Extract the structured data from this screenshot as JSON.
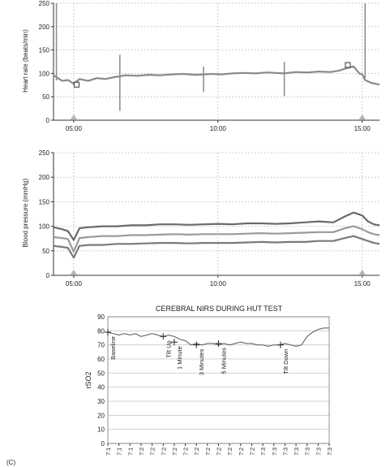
{
  "panel_label": "(C)",
  "chart_data": [
    {
      "type": "line",
      "title": "",
      "xlabel": "",
      "ylabel": "Heart rate (beats/min)",
      "ylim": [
        0,
        250
      ],
      "yticks": [
        "0",
        "50",
        "100",
        "150",
        "200",
        "250"
      ],
      "xticks": [
        {
          "label": "05:00",
          "at": 5
        },
        {
          "label": "10:00",
          "at": 10
        },
        {
          "label": "15:00",
          "at": 15
        }
      ],
      "xlim": [
        4.3,
        15.6
      ],
      "grid": true,
      "series": [
        {
          "name": "",
          "color": "#8a8a8a",
          "x": [
            4.3,
            4.4,
            4.5,
            4.6,
            4.8,
            5.0,
            5.2,
            5.5,
            5.8,
            6.1,
            6.4,
            6.6,
            6.8,
            7.2,
            7.6,
            8.0,
            8.4,
            8.8,
            9.2,
            9.5,
            9.8,
            10.1,
            10.5,
            10.9,
            11.3,
            11.7,
            12.0,
            12.3,
            12.7,
            13.1,
            13.5,
            13.9,
            14.2,
            14.5,
            14.7,
            14.9,
            15.0,
            15.1,
            15.3,
            15.6
          ],
          "values": [
            96,
            92,
            88,
            84,
            86,
            78,
            88,
            84,
            90,
            88,
            92,
            94,
            96,
            95,
            97,
            96,
            98,
            99,
            97,
            98,
            99,
            98,
            100,
            101,
            100,
            102,
            101,
            100,
            103,
            102,
            104,
            103,
            106,
            112,
            115,
            100,
            98,
            86,
            80,
            76
          ]
        }
      ],
      "spikes": [
        {
          "x": 6.6,
          "values": [
            140,
            20
          ]
        },
        {
          "x": 9.5,
          "values": [
            115,
            60
          ]
        },
        {
          "x": 12.3,
          "values": [
            125,
            52
          ]
        },
        {
          "x": 4.4,
          "values": [
            250,
            85
          ]
        },
        {
          "x": 15.1,
          "values": [
            250,
            90
          ]
        }
      ],
      "markers": [
        {
          "x": 5.1,
          "y": 76
        },
        {
          "x": 14.5,
          "y": 118
        }
      ],
      "triangles": [
        5.0,
        15.0
      ]
    },
    {
      "type": "line",
      "title": "",
      "xlabel": "",
      "ylabel": "Blood pressure (mmHg)",
      "ylim": [
        0,
        250
      ],
      "yticks": [
        "0",
        "50",
        "100",
        "150",
        "200",
        "250"
      ],
      "xticks": [
        {
          "label": "05:00",
          "at": 5
        },
        {
          "label": "10:00",
          "at": 10
        },
        {
          "label": "15:00",
          "at": 15
        }
      ],
      "xlim": [
        4.3,
        15.6
      ],
      "grid": true,
      "series": [
        {
          "name": "",
          "color": "#6a6a6a",
          "x": [
            4.3,
            4.6,
            4.8,
            5.0,
            5.2,
            5.5,
            6.0,
            6.5,
            7.0,
            7.5,
            8.0,
            8.5,
            9.0,
            9.5,
            10.0,
            10.5,
            11.0,
            11.5,
            12.0,
            12.5,
            13.0,
            13.5,
            14.0,
            14.4,
            14.7,
            15.0,
            15.2,
            15.4,
            15.6
          ],
          "values": [
            98,
            94,
            90,
            72,
            96,
            98,
            100,
            100,
            102,
            102,
            104,
            104,
            103,
            104,
            105,
            104,
            106,
            106,
            105,
            106,
            108,
            110,
            108,
            120,
            128,
            122,
            110,
            104,
            102
          ]
        },
        {
          "name": "",
          "color": "#9a9a9a",
          "x": [
            4.3,
            4.6,
            4.8,
            5.0,
            5.2,
            5.5,
            6.0,
            6.5,
            7.0,
            7.5,
            8.0,
            8.5,
            9.0,
            9.5,
            10.0,
            10.5,
            11.0,
            11.5,
            12.0,
            12.5,
            13.0,
            13.5,
            14.0,
            14.4,
            14.7,
            15.0,
            15.2,
            15.4,
            15.6
          ],
          "values": [
            78,
            76,
            74,
            48,
            76,
            78,
            80,
            80,
            82,
            82,
            83,
            84,
            83,
            84,
            84,
            84,
            85,
            86,
            85,
            86,
            87,
            88,
            88,
            96,
            100,
            94,
            88,
            84,
            82
          ]
        },
        {
          "name": "",
          "color": "#7a7a7a",
          "x": [
            4.3,
            4.6,
            4.8,
            5.0,
            5.2,
            5.5,
            6.0,
            6.5,
            7.0,
            7.5,
            8.0,
            8.5,
            9.0,
            9.5,
            10.0,
            10.5,
            11.0,
            11.5,
            12.0,
            12.5,
            13.0,
            13.5,
            14.0,
            14.4,
            14.7,
            15.0,
            15.2,
            15.4,
            15.6
          ],
          "values": [
            60,
            58,
            56,
            36,
            60,
            62,
            62,
            64,
            64,
            65,
            66,
            66,
            65,
            66,
            66,
            66,
            67,
            68,
            67,
            68,
            68,
            70,
            70,
            76,
            80,
            74,
            70,
            66,
            64
          ]
        }
      ],
      "triangles": [
        5.0,
        15.0
      ]
    },
    {
      "type": "line",
      "title": "CEREBRAL NIRS DURING HUT TEST",
      "xlabel": "",
      "ylabel": "rSO2",
      "ylim": [
        0,
        90
      ],
      "yticks": [
        "0",
        "10",
        "20",
        "30",
        "40",
        "50",
        "60",
        "70",
        "80",
        "90"
      ],
      "xticks": [
        "7:1",
        "7:1",
        "7:1",
        "7:2",
        "7:2",
        "7:2",
        "7:2",
        "7:2",
        "7:2",
        "7:2",
        "7:2",
        "7:2",
        "7:2",
        "7:2",
        "7:3",
        "7:3",
        "7:3",
        "7:3",
        "7:3",
        "7:3",
        "7:3"
      ],
      "grid": true,
      "series": [
        {
          "name": "",
          "color": "#555555",
          "x": [
            0,
            0.5,
            1,
            1.5,
            2,
            2.5,
            3,
            3.5,
            4,
            4.5,
            5,
            5.5,
            6,
            6.5,
            7,
            7.5,
            8,
            8.5,
            9,
            9.5,
            10,
            10.5,
            11,
            11.5,
            12,
            12.5,
            13,
            13.5,
            14,
            14.5,
            15,
            15.5,
            16,
            16.5,
            17,
            17.5,
            18,
            18.5,
            19,
            19.5,
            20
          ],
          "values": [
            79,
            78,
            77,
            78,
            77,
            78,
            76,
            77,
            78,
            77,
            76,
            77,
            76,
            74,
            73,
            70,
            71,
            70,
            71,
            71,
            70,
            71,
            70,
            71,
            72,
            71,
            71,
            70,
            70,
            69,
            70,
            70,
            71,
            70,
            69,
            70,
            76,
            79,
            81,
            82,
            82
          ]
        }
      ],
      "events": [
        {
          "label": "Baseline",
          "x": 0,
          "y": 79
        },
        {
          "label": "Tilt Up",
          "x": 5,
          "y": 76
        },
        {
          "label": "1 Minute",
          "x": 6,
          "y": 72
        },
        {
          "label": "3 Minutes",
          "x": 8,
          "y": 70
        },
        {
          "label": "5 Minutes",
          "x": 10,
          "y": 71
        },
        {
          "label": "Tilt Down",
          "x": 15.6,
          "y": 70
        }
      ]
    }
  ]
}
